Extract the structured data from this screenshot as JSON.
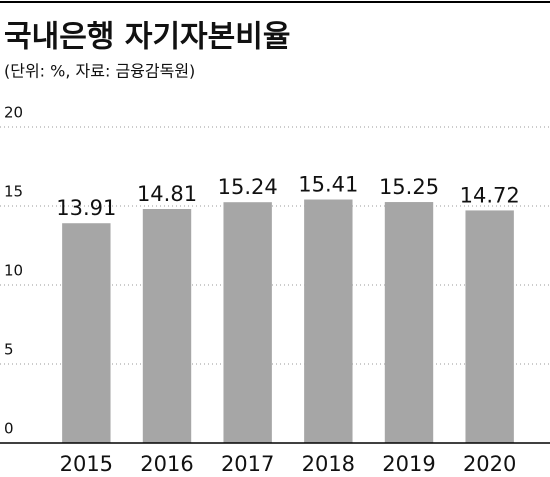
{
  "chart_data": {
    "type": "bar",
    "title": "국내은행 자기자본비율",
    "subtitle": "(단위: %, 자료: 금융감독원)",
    "categories": [
      "2015",
      "2016",
      "2017",
      "2018",
      "2019",
      "2020"
    ],
    "values": [
      13.91,
      14.81,
      15.24,
      15.41,
      15.25,
      14.72
    ],
    "color": "#a6a6a6",
    "ylim": [
      0,
      20
    ],
    "yticks": [
      0,
      5,
      10,
      15,
      20
    ],
    "grid": true
  }
}
